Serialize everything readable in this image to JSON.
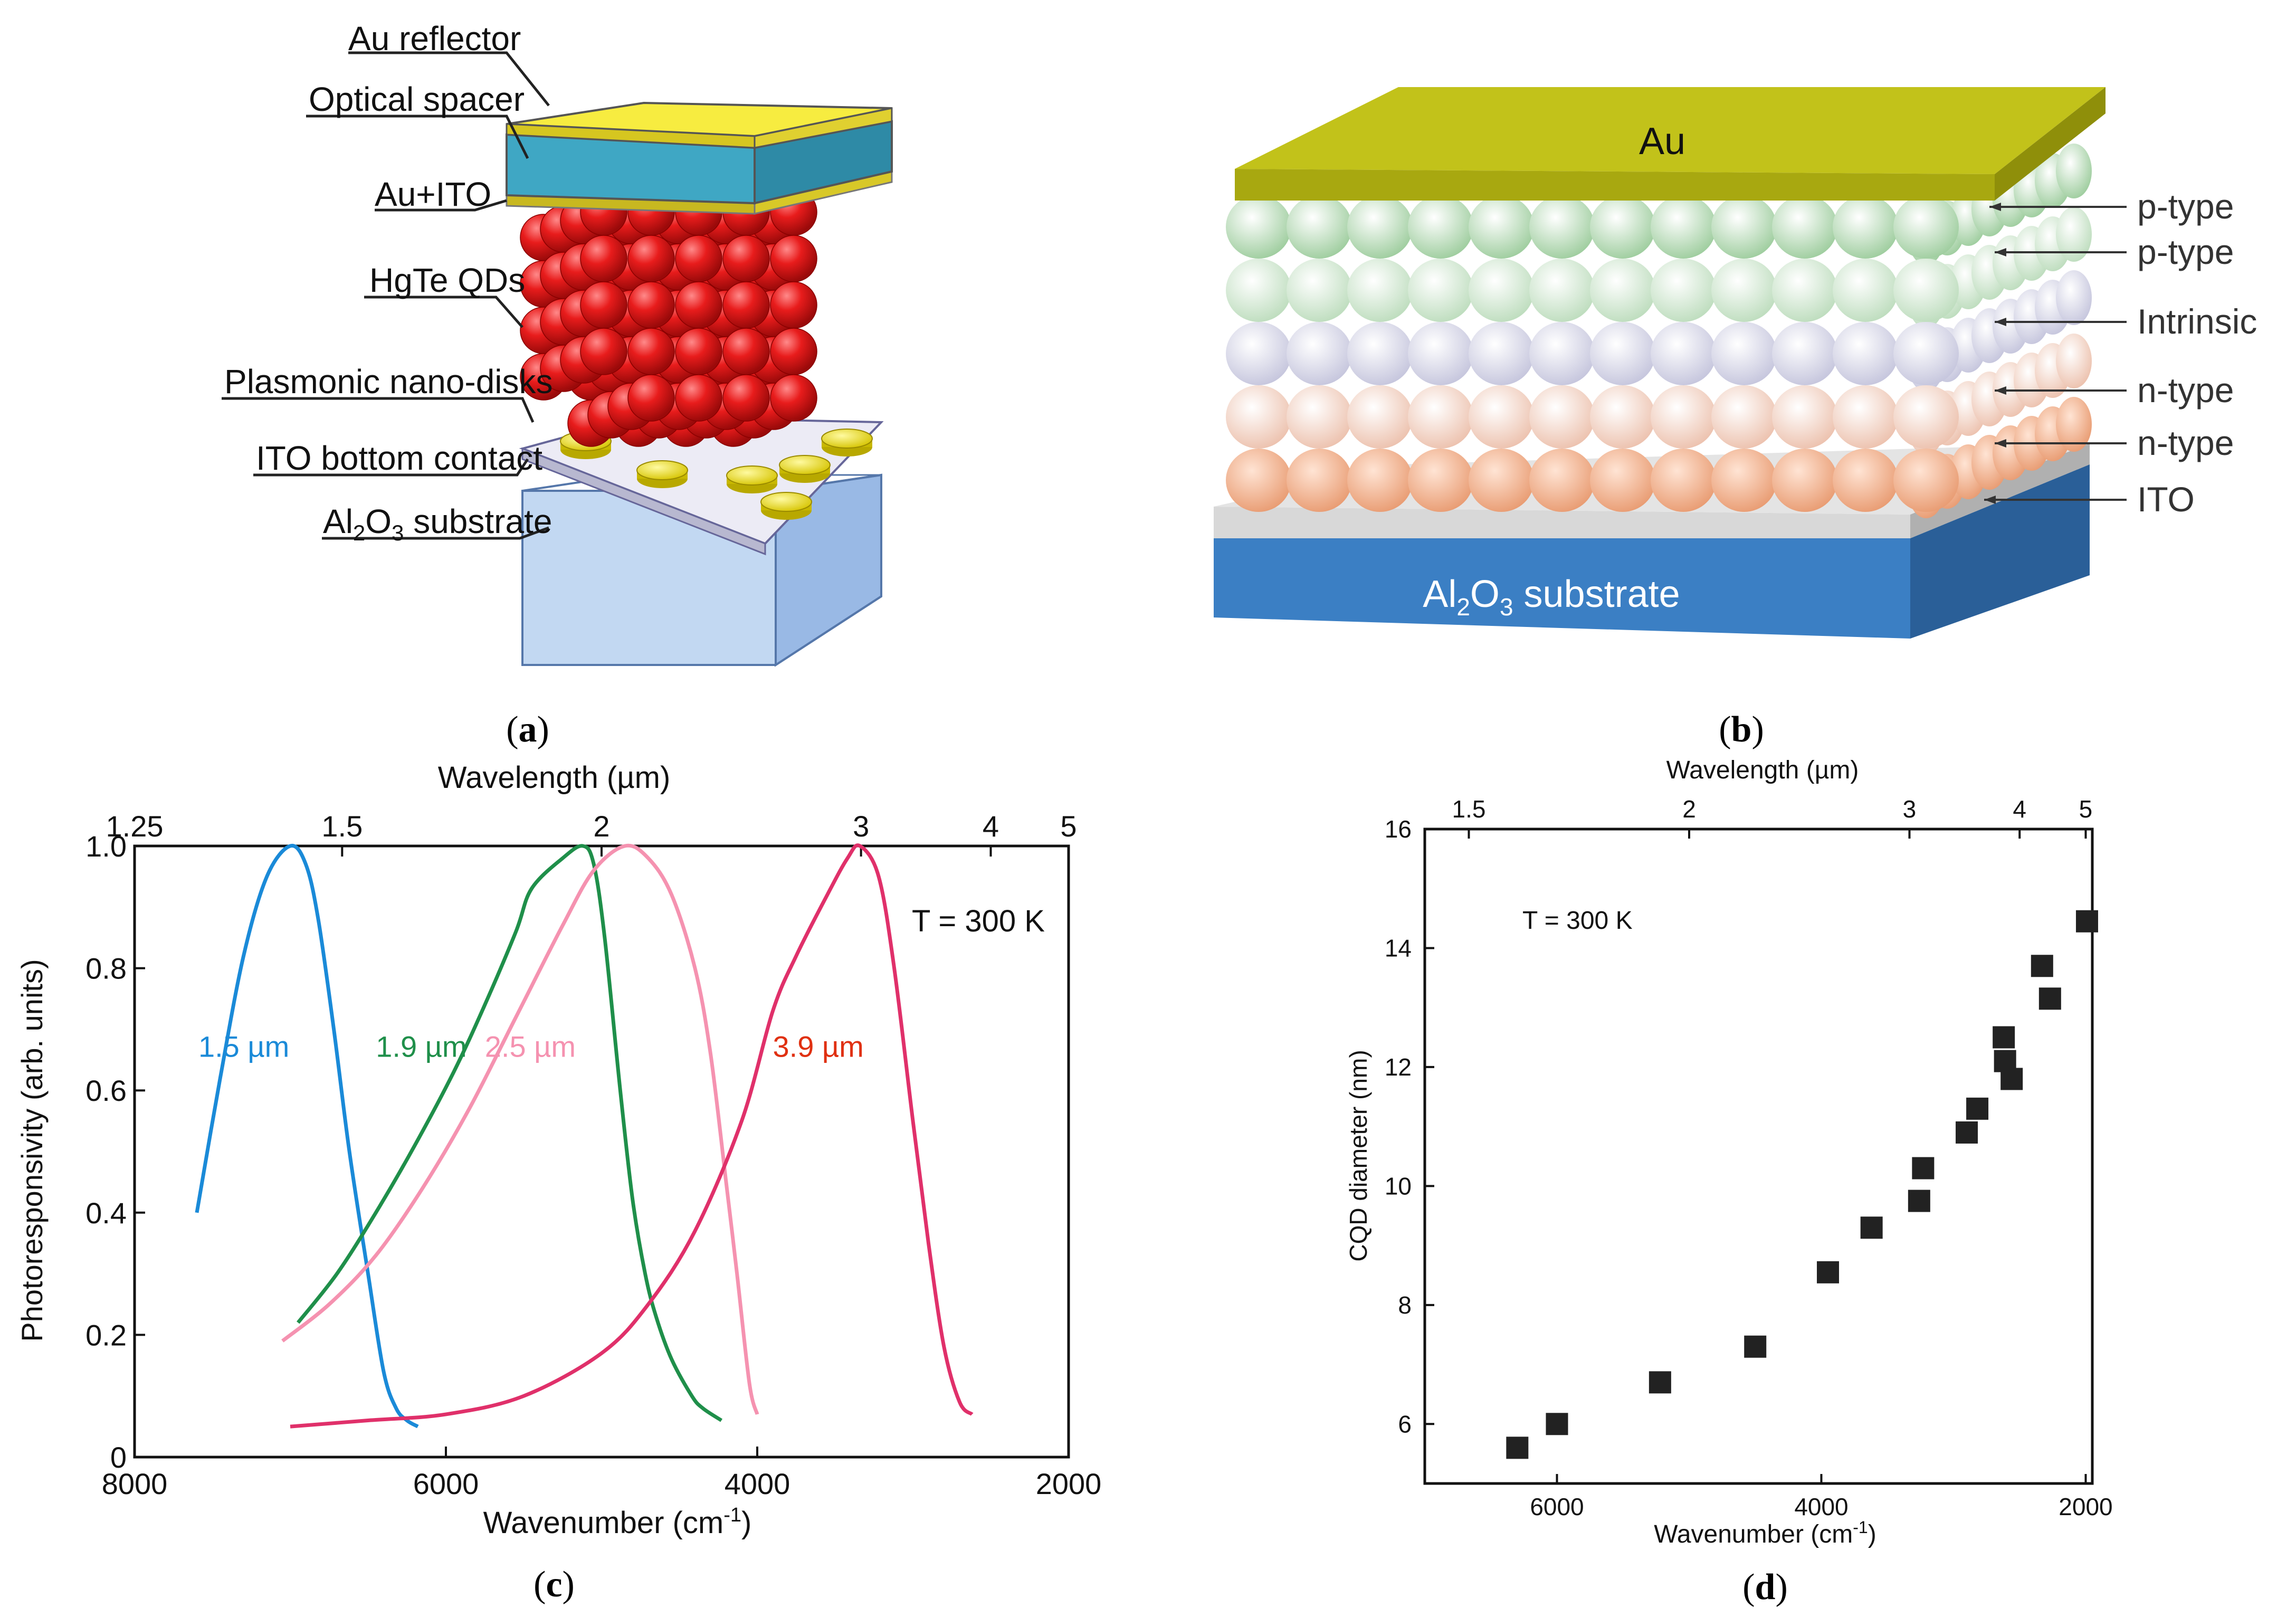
{
  "panel_a": {
    "caption_letter": "a",
    "labels": [
      "Au reflector",
      "Optical spacer",
      "Au+ITO",
      "HgTe QDs",
      "Plasmonic nano-disks",
      "ITO bottom contact"
    ],
    "substrate_main": "Al",
    "substrate_sub1": "2",
    "substrate_mid": "O",
    "substrate_sub2": "3",
    "substrate_tail": " substrate",
    "colors": {
      "gold": "#f2e43a",
      "spacer": "#3fa7c4",
      "qd": "#e41b1b",
      "ito": "#e6e6f0",
      "substrate": "#8fb8e8"
    }
  },
  "panel_b": {
    "caption_letter": "b",
    "top_label": "Au",
    "layer_labels": [
      "p-type",
      "p-type",
      "Intrinsic",
      "n-type",
      "n-type",
      "ITO"
    ],
    "substrate_main": "Al",
    "substrate_sub1": "2",
    "substrate_mid": "O",
    "substrate_sub2": "3",
    "substrate_tail": " substrate",
    "colors": {
      "au": "#c2c21a",
      "p1": "#b4dcb4",
      "p2": "#cfe8cf",
      "intrinsic": "#dcdcec",
      "n1": "#f4d4c4",
      "n2": "#f2b89a",
      "ito": "#d8d8d8",
      "substrate": "#3b7fc4"
    }
  },
  "chart_data": [
    {
      "type": "line",
      "panel": "c",
      "caption_letter": "c",
      "xlabel_main": "Wavenumber (cm",
      "xlabel_sup": "-1",
      "xlabel_close": ")",
      "ylabel": "Photoresponsivity (arb. units)",
      "top_axis_label": "Wavelength (µm)",
      "top_ticks": [
        "1.25",
        "1.5",
        "2",
        "3",
        "4",
        "5"
      ],
      "top_tick_values": [
        1.25,
        1.5,
        2,
        3,
        4,
        5
      ],
      "xlim": [
        8000,
        2000
      ],
      "ylim": [
        0,
        1.0
      ],
      "x_ticks": [
        8000,
        6000,
        4000,
        2000
      ],
      "x_tick_labels": [
        "8000",
        "6000",
        "4000",
        "2000"
      ],
      "y_ticks": [
        0,
        0.2,
        0.4,
        0.6,
        0.8,
        1.0
      ],
      "y_tick_labels": [
        "0",
        "0.2",
        "0.4",
        "0.6",
        "0.8",
        "1.0"
      ],
      "annotation": "T = 300 K",
      "series": [
        {
          "name": "1.5 µm",
          "color": "#1a8ad8",
          "x": [
            7600,
            7450,
            7300,
            7150,
            7000,
            6900,
            6820,
            6720,
            6620,
            6500,
            6400,
            6320,
            6250,
            6180
          ],
          "y": [
            0.4,
            0.62,
            0.82,
            0.95,
            1.0,
            0.97,
            0.88,
            0.7,
            0.5,
            0.3,
            0.14,
            0.08,
            0.06,
            0.05
          ]
        },
        {
          "name": "1.9 µm",
          "color": "#1f8f4a",
          "x": [
            6950,
            6700,
            6450,
            6200,
            5950,
            5750,
            5550,
            5450,
            5250,
            5120,
            5050,
            4980,
            4880,
            4800,
            4720,
            4650,
            4550,
            4420,
            4350,
            4230
          ],
          "y": [
            0.22,
            0.3,
            0.4,
            0.51,
            0.63,
            0.74,
            0.86,
            0.93,
            0.98,
            1.0,
            0.97,
            0.85,
            0.6,
            0.42,
            0.3,
            0.23,
            0.16,
            0.1,
            0.08,
            0.06
          ]
        },
        {
          "name": "2.5 µm",
          "color": "#f592b0",
          "x": [
            7050,
            6750,
            6450,
            6150,
            5850,
            5550,
            5250,
            5050,
            4850,
            4700,
            4550,
            4400,
            4300,
            4200,
            4130,
            4050,
            4000
          ],
          "y": [
            0.19,
            0.25,
            0.33,
            0.44,
            0.57,
            0.72,
            0.87,
            0.96,
            1.0,
            0.98,
            0.92,
            0.8,
            0.66,
            0.45,
            0.3,
            0.12,
            0.07
          ]
        },
        {
          "name": "3.9 µm",
          "color": "#e0306a",
          "x": [
            7000,
            6500,
            6000,
            5500,
            5000,
            4700,
            4400,
            4100,
            3900,
            3750,
            3550,
            3420,
            3340,
            3220,
            3120,
            3000,
            2900,
            2800,
            2700,
            2620
          ],
          "y": [
            0.05,
            0.06,
            0.07,
            0.1,
            0.17,
            0.25,
            0.37,
            0.55,
            0.73,
            0.82,
            0.92,
            0.98,
            1.0,
            0.95,
            0.8,
            0.55,
            0.35,
            0.18,
            0.09,
            0.07
          ]
        }
      ],
      "curve_labels": [
        "1.5 µm",
        "1.9 µm",
        "2.5 µm",
        "3.9 µm"
      ],
      "curve_label_colors": [
        "#1a8ad8",
        "#1f8f4a",
        "#f592b0",
        "#e03010"
      ],
      "grid": false
    },
    {
      "type": "scatter",
      "panel": "d",
      "caption_letter": "d",
      "xlabel_main": "Wavenumber (cm",
      "xlabel_sup": "-1",
      "xlabel_close": ")",
      "ylabel": "CQD diameter (nm)",
      "top_axis_label": "Wavelength (µm)",
      "top_ticks": [
        "1.5",
        "2",
        "3",
        "4",
        "5"
      ],
      "top_tick_values": [
        1.5,
        2,
        3,
        4,
        5
      ],
      "xlim": [
        7000,
        1950
      ],
      "ylim": [
        5,
        16
      ],
      "x_ticks": [
        6000,
        4000,
        2000
      ],
      "x_tick_labels": [
        "6000",
        "4000",
        "2000"
      ],
      "y_ticks": [
        6,
        8,
        10,
        12,
        14,
        16
      ],
      "y_tick_labels": [
        "6",
        "8",
        "10",
        "12",
        "14",
        "16"
      ],
      "annotation": "T = 300 K",
      "marker_color": "#222222",
      "points": {
        "x": [
          6300,
          6000,
          5220,
          4500,
          3950,
          3620,
          3260,
          3230,
          2900,
          2820,
          2620,
          2610,
          2560,
          2330,
          2270,
          1990
        ],
        "y": [
          5.6,
          6.0,
          6.7,
          7.3,
          8.55,
          9.3,
          9.75,
          10.3,
          10.9,
          11.3,
          12.5,
          12.1,
          11.8,
          13.7,
          13.15,
          14.45
        ]
      },
      "grid": false
    }
  ]
}
